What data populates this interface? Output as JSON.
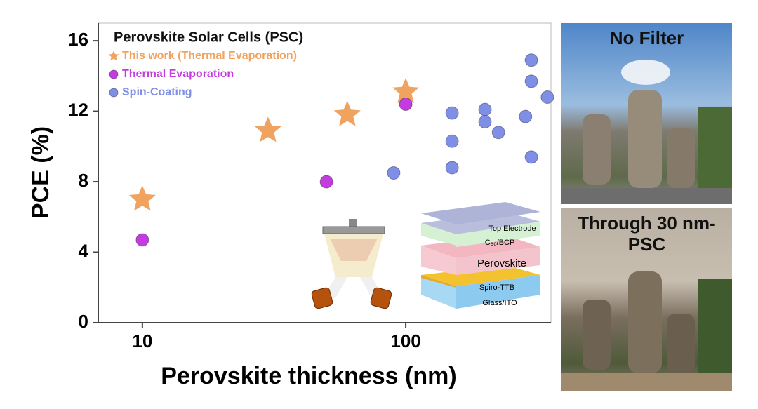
{
  "chart_data": {
    "type": "scatter",
    "xlabel": "Perovskite thickness (nm)",
    "ylabel": "PCE (%)",
    "legend_title": "Perovskite Solar Cells (PSC)",
    "xscale": "log",
    "xlim": [
      6.8,
      356
    ],
    "ylim": [
      0,
      17
    ],
    "xticks": [
      10,
      100
    ],
    "yticks": [
      0,
      4,
      8,
      12,
      16
    ],
    "legend": "top-left",
    "series": [
      {
        "name": "This work (Thermal Evaporation)",
        "color": "#f0a35e",
        "marker": "star",
        "x": [
          10,
          30,
          60,
          100
        ],
        "values": [
          7.0,
          10.9,
          11.8,
          13.1
        ]
      },
      {
        "name": "Thermal Evaporation",
        "color": "#c23ce0",
        "marker": "sphere",
        "x": [
          10,
          50,
          100
        ],
        "values": [
          4.7,
          8.0,
          12.4
        ]
      },
      {
        "name": "Spin-Coating",
        "color": "#7f8fe6",
        "marker": "sphere",
        "x": [
          90,
          150,
          150,
          150,
          200,
          200,
          225,
          285,
          300,
          300,
          300,
          345
        ],
        "values": [
          8.5,
          11.9,
          10.3,
          8.8,
          12.1,
          11.4,
          10.8,
          11.7,
          14.9,
          13.7,
          9.4,
          12.8
        ]
      }
    ]
  },
  "inset": {
    "layers": [
      "Top Electrode",
      "C₆₀/BCP",
      "Perovskite",
      "Spiro-TTB",
      "Glass/ITO"
    ]
  },
  "photos": [
    {
      "label": "No Filter"
    },
    {
      "label": "Through 30 nm-PSC"
    }
  ]
}
